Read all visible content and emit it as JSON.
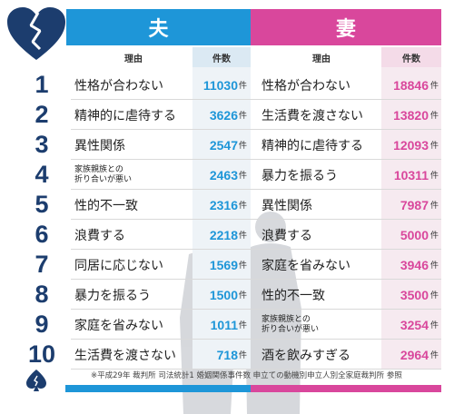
{
  "header": {
    "husband_label": "夫",
    "wife_label": "妻",
    "reason_header": "理由",
    "count_header": "件数"
  },
  "unit": "件",
  "colors": {
    "husband": "#1e96d8",
    "wife": "#d9479c",
    "rank": "#1c3d6e"
  },
  "icons": {
    "logo": "broken-heart-icon",
    "footer": "spade-icon"
  },
  "rows": [
    {
      "rank": "1",
      "husband_reason": "性格が合わない",
      "husband_count": "11030",
      "wife_reason": "性格が合わない",
      "wife_count": "18846"
    },
    {
      "rank": "2",
      "husband_reason": "精神的に虐待する",
      "husband_count": "3626",
      "wife_reason": "生活費を渡さない",
      "wife_count": "13820"
    },
    {
      "rank": "3",
      "husband_reason": "異性関係",
      "husband_count": "2547",
      "wife_reason": "精神的に虐待する",
      "wife_count": "12093"
    },
    {
      "rank": "4",
      "husband_reason": "家族親族との\n折り合いが悪い",
      "husband_count": "2463",
      "wife_reason": "暴力を振るう",
      "wife_count": "10311"
    },
    {
      "rank": "5",
      "husband_reason": "性的不一致",
      "husband_count": "2316",
      "wife_reason": "異性関係",
      "wife_count": "7987"
    },
    {
      "rank": "6",
      "husband_reason": "浪費する",
      "husband_count": "2218",
      "wife_reason": "浪費する",
      "wife_count": "5000"
    },
    {
      "rank": "7",
      "husband_reason": "同居に応じない",
      "husband_count": "1569",
      "wife_reason": "家庭を省みない",
      "wife_count": "3946"
    },
    {
      "rank": "8",
      "husband_reason": "暴力を振るう",
      "husband_count": "1500",
      "wife_reason": "性的不一致",
      "wife_count": "3500"
    },
    {
      "rank": "9",
      "husband_reason": "家庭を省みない",
      "husband_count": "1011",
      "wife_reason": "家族親族との\n折り合いが悪い",
      "wife_count": "3254"
    },
    {
      "rank": "10",
      "husband_reason": "生活費を渡さない",
      "husband_count": "718",
      "wife_reason": "酒を飲みすぎる",
      "wife_count": "2964"
    }
  ],
  "footnote": "※平成29年 裁判所 司法統計1 婚姻関係事件数 申立ての動機別申立人別全家庭裁判所 参照"
}
